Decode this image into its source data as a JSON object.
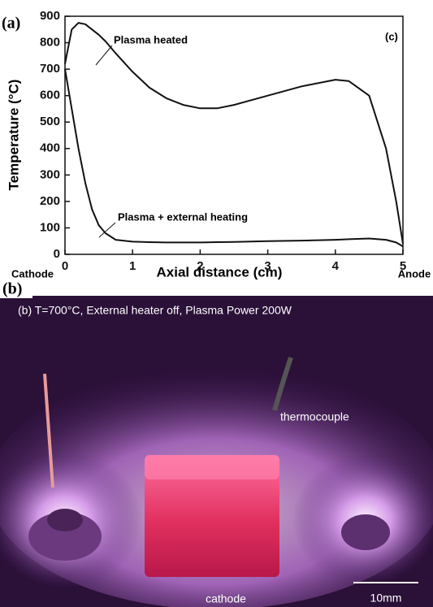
{
  "chart_data": {
    "type": "line",
    "panel_label": "(a)",
    "inset_label": "(c)",
    "xlabel": "Axial distance (cm)",
    "ylabel": "Temperature (°C)",
    "xlim": [
      0,
      5
    ],
    "xticks": [
      0,
      1,
      2,
      3,
      4,
      5
    ],
    "ylim": [
      0,
      900
    ],
    "yticks": [
      0,
      100,
      200,
      300,
      400,
      500,
      600,
      700,
      800,
      900
    ],
    "x_end_labels": [
      "Cathode",
      "Anode"
    ],
    "x": [
      0,
      0.1,
      0.2,
      0.3,
      0.4,
      0.5,
      0.6,
      0.75,
      1.0,
      1.25,
      1.5,
      1.75,
      2.0,
      2.25,
      2.5,
      3.0,
      3.5,
      4.0,
      4.2,
      4.5,
      4.75,
      4.9,
      5.0
    ],
    "series": [
      {
        "name": "Plasma heated",
        "color": "#111111",
        "values": [
          720,
          850,
          875,
          870,
          850,
          830,
          805,
          760,
          690,
          630,
          590,
          565,
          552,
          552,
          565,
          600,
          635,
          660,
          655,
          600,
          400,
          200,
          40
        ]
      },
      {
        "name": "Plasma + external heating",
        "color": "#111111",
        "values": [
          700,
          550,
          400,
          270,
          170,
          110,
          80,
          55,
          48,
          46,
          45,
          45,
          45,
          46,
          47,
          50,
          52,
          55,
          57,
          60,
          55,
          45,
          30
        ]
      }
    ]
  },
  "photo": {
    "panel_label": "(b)",
    "caption": "(b) T=700°C, External heater off, Plasma Power 200W",
    "labels": [
      "thermocouple",
      "cathode"
    ],
    "scale_bar": "10mm"
  }
}
